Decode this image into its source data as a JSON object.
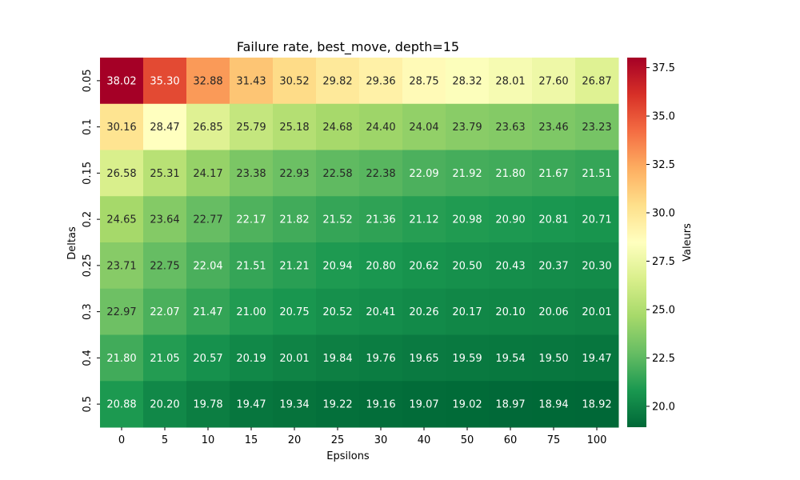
{
  "chart_data": {
    "type": "heatmap",
    "title": "Failure rate, best_move, depth=15",
    "xlabel": "Epsilons",
    "ylabel": "Deltas",
    "colorbar_label": "Valeurs",
    "x_categories": [
      "0",
      "5",
      "10",
      "15",
      "20",
      "25",
      "30",
      "40",
      "50",
      "60",
      "75",
      "100"
    ],
    "y_categories": [
      "0.05",
      "0.1",
      "0.15",
      "0.2",
      "0.25",
      "0.3",
      "0.4",
      "0.5"
    ],
    "values": [
      [
        38.02,
        35.3,
        32.88,
        31.43,
        30.52,
        29.82,
        29.36,
        28.75,
        28.32,
        28.01,
        27.6,
        26.87
      ],
      [
        30.16,
        28.47,
        26.85,
        25.79,
        25.18,
        24.68,
        24.4,
        24.04,
        23.79,
        23.63,
        23.46,
        23.23
      ],
      [
        26.58,
        25.31,
        24.17,
        23.38,
        22.93,
        22.58,
        22.38,
        22.09,
        21.92,
        21.8,
        21.67,
        21.51
      ],
      [
        24.65,
        23.64,
        22.77,
        22.17,
        21.82,
        21.52,
        21.36,
        21.12,
        20.98,
        20.9,
        20.81,
        20.71
      ],
      [
        23.71,
        22.75,
        22.04,
        21.51,
        21.21,
        20.94,
        20.8,
        20.62,
        20.5,
        20.43,
        20.37,
        20.3
      ],
      [
        22.97,
        22.07,
        21.47,
        21.0,
        20.75,
        20.52,
        20.41,
        20.26,
        20.17,
        20.1,
        20.06,
        20.01
      ],
      [
        21.8,
        21.05,
        20.57,
        20.19,
        20.01,
        19.84,
        19.76,
        19.65,
        19.59,
        19.54,
        19.5,
        19.47
      ],
      [
        20.88,
        20.2,
        19.78,
        19.47,
        19.34,
        19.22,
        19.16,
        19.07,
        19.02,
        18.97,
        18.94,
        18.92
      ]
    ],
    "colormap": "RdYlGn_r",
    "colorbar_range": [
      18.92,
      38.02
    ],
    "colorbar_ticks": [
      "20.0",
      "22.5",
      "25.0",
      "27.5",
      "30.0",
      "32.5",
      "35.0",
      "37.5"
    ],
    "annotations": true,
    "grid": false
  }
}
